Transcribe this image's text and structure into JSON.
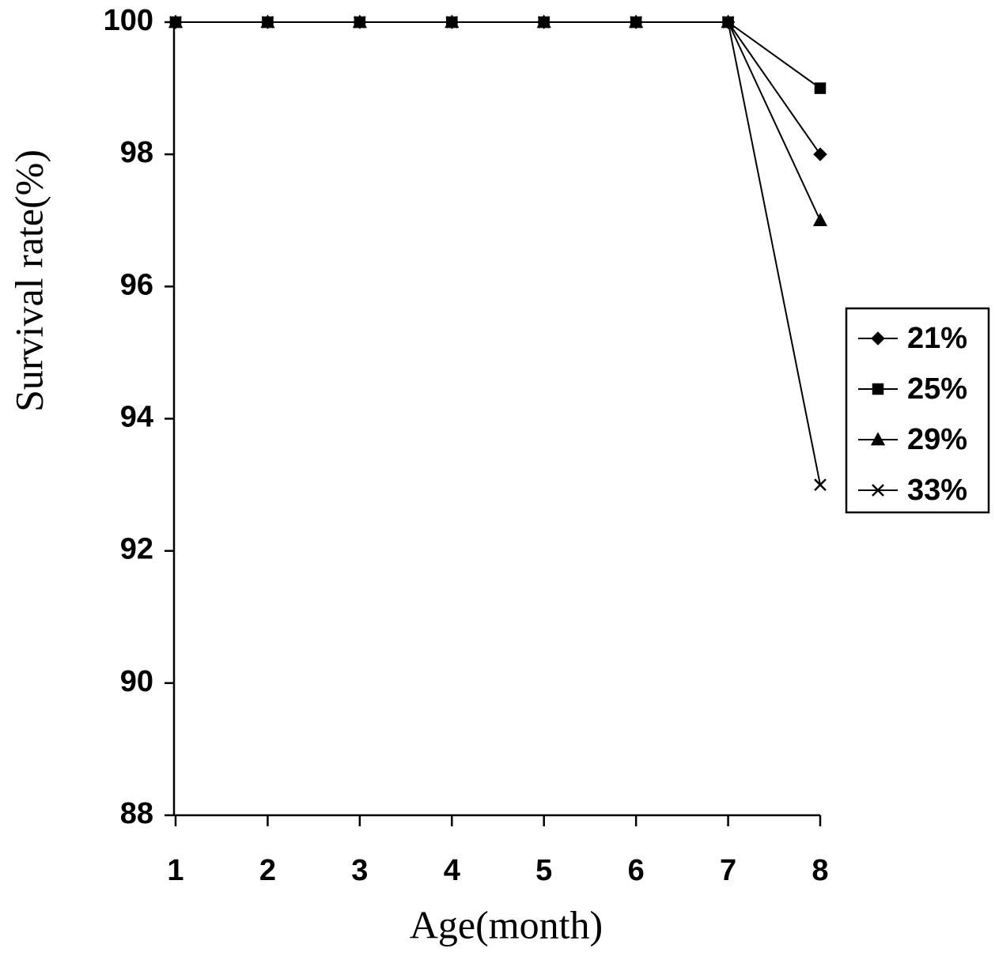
{
  "chart_data": {
    "type": "line",
    "x_label": "Age(month)",
    "y_label": "Survival rate(%)",
    "x": [
      1,
      2,
      3,
      4,
      5,
      6,
      7,
      8
    ],
    "series": [
      {
        "name": "21%",
        "color": "#000000",
        "marker": "diamond",
        "values": [
          100,
          100,
          100,
          100,
          100,
          100,
          100,
          98
        ]
      },
      {
        "name": "25%",
        "color": "#000000",
        "marker": "square",
        "values": [
          100,
          100,
          100,
          100,
          100,
          100,
          100,
          99
        ]
      },
      {
        "name": "29%",
        "color": "#000000",
        "marker": "triangle",
        "values": [
          100,
          100,
          100,
          100,
          100,
          100,
          100,
          97
        ]
      },
      {
        "name": "33%",
        "color": "#000000",
        "marker": "x",
        "values": [
          100,
          100,
          100,
          100,
          100,
          100,
          100,
          93
        ]
      }
    ],
    "xlim": [
      1,
      8
    ],
    "xticks": [
      1,
      2,
      3,
      4,
      5,
      6,
      7,
      8
    ],
    "ylim": [
      88,
      100
    ],
    "yticks": [
      88,
      90,
      92,
      94,
      96,
      98,
      100
    ],
    "legend": "right"
  }
}
